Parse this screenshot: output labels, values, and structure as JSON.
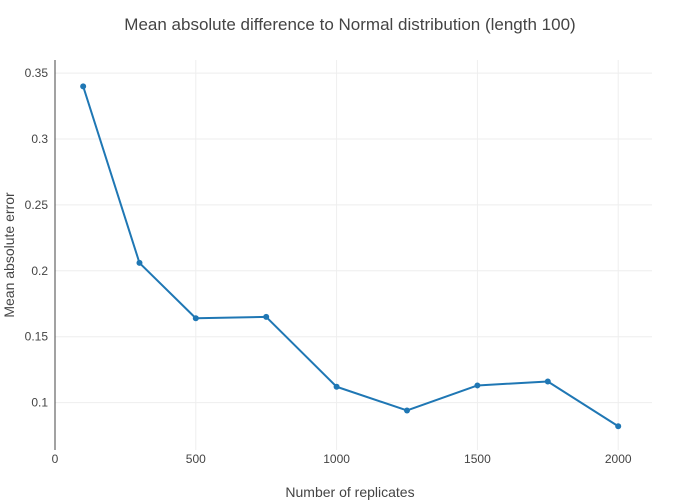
{
  "chart_data": {
    "type": "line",
    "title": "Mean absolute difference to Normal distribution (length 100)",
    "xlabel": "Number of replicates",
    "ylabel": "Mean absolute error",
    "x": [
      100,
      300,
      500,
      750,
      1000,
      1250,
      1500,
      1750,
      2000
    ],
    "series": [
      {
        "values": [
          0.34,
          0.206,
          0.164,
          0.165,
          0.112,
          0.094,
          0.113,
          0.116,
          0.082
        ]
      }
    ],
    "xlim": [
      0,
      2120
    ],
    "ylim": [
      0.064,
      0.36
    ],
    "xticks": [
      0,
      500,
      1000,
      1500,
      2000
    ],
    "xtick_labels": [
      "0",
      "500",
      "1000",
      "1500",
      "2000"
    ],
    "yticks": [
      0.1,
      0.15,
      0.2,
      0.25,
      0.3,
      0.35
    ],
    "ytick_labels": [
      "0.1",
      "0.15",
      "0.2",
      "0.25",
      "0.3",
      "0.35"
    ],
    "grid": true,
    "legend": "none",
    "line_color": "#1f77b4",
    "grid_color": "#eeeeee",
    "axis_color": "#444444"
  }
}
